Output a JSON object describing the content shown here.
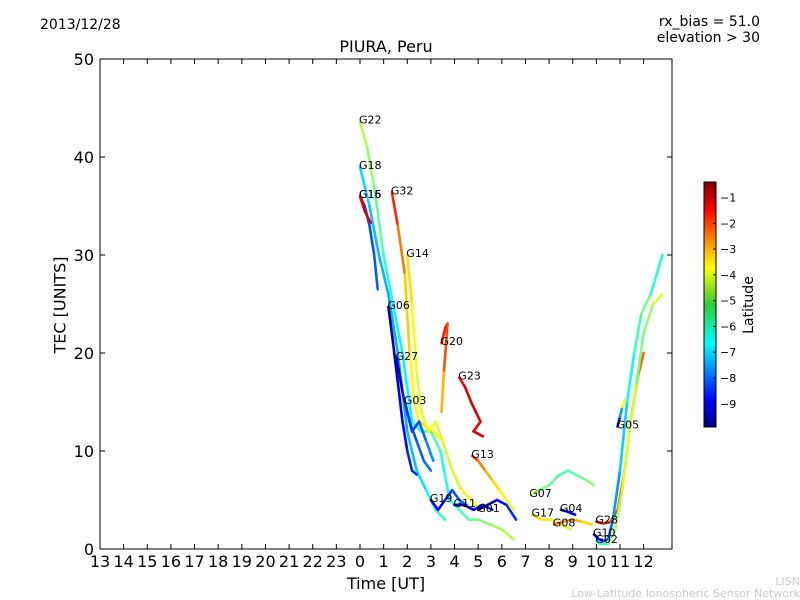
{
  "header": {
    "date": "2013/12/28",
    "rx_bias": "rx_bias = 51.0",
    "elevation": "elevation > 30"
  },
  "credit": {
    "line1": "LISN",
    "line2": "Low-Latitude Ionospheric Sensor Network"
  },
  "chart_data": {
    "type": "scatter",
    "title": "PIURA, Peru",
    "xlabel": "Time [UT]",
    "ylabel": "TEC [UNITS]",
    "x_tick_labels": [
      "13",
      "14",
      "15",
      "16",
      "17",
      "18",
      "19",
      "20",
      "21",
      "22",
      "23",
      "0",
      "1",
      "2",
      "3",
      "4",
      "5",
      "6",
      "7",
      "8",
      "9",
      "10",
      "11",
      "12"
    ],
    "ylim": [
      0,
      50
    ],
    "y_ticks": [
      0,
      10,
      20,
      30,
      40,
      50
    ],
    "colorbar": {
      "label": "Latitude",
      "range": [
        -9.9,
        -0.4
      ],
      "ticks": [
        -1,
        -2,
        -3,
        -4,
        -5,
        -6,
        -7,
        -8,
        -9
      ],
      "colormap": "jet"
    },
    "x_unit_note": "x values in hours after 13 UT (0 UT = 11)",
    "series": [
      {
        "name": "G22",
        "points": [
          [
            11.0,
            43.6,
            -4.5
          ],
          [
            11.3,
            41,
            -4.8
          ],
          [
            11.6,
            37,
            -5.2
          ],
          [
            12.0,
            30,
            -5.8
          ],
          [
            12.4,
            25,
            -6.2
          ],
          [
            12.8,
            20,
            -6.5
          ],
          [
            13.2,
            13,
            -6.3
          ],
          [
            13.6,
            12,
            -6.0
          ],
          [
            14.0,
            12,
            -5.5
          ],
          [
            14.4,
            10,
            -5.7
          ],
          [
            14.8,
            5,
            -6.4
          ],
          [
            15.2,
            4,
            -5.8
          ],
          [
            15.6,
            3,
            -5.5
          ],
          [
            16.0,
            3,
            -5.2
          ],
          [
            16.5,
            2.5,
            -5.0
          ],
          [
            17.0,
            2,
            -4.8
          ],
          [
            17.5,
            1,
            -4.5
          ]
        ]
      },
      {
        "name": "G18",
        "points": [
          [
            11.0,
            39,
            -6.5
          ],
          [
            11.4,
            35,
            -6.8
          ],
          [
            11.8,
            30,
            -7.0
          ],
          [
            12.2,
            26,
            -7.0
          ],
          [
            12.6,
            20,
            -7.2
          ],
          [
            13.0,
            12,
            -7.0
          ],
          [
            13.4,
            8,
            -6.8
          ],
          [
            13.8,
            6,
            -6.4
          ],
          [
            14.2,
            4,
            -6.0
          ],
          [
            14.6,
            3,
            -5.8
          ]
        ]
      },
      {
        "name": "G15",
        "points": [
          [
            11.0,
            36,
            -8.2
          ],
          [
            11.2,
            35,
            -8.1
          ],
          [
            11.4,
            33,
            -8.0
          ],
          [
            11.6,
            30,
            -7.9
          ],
          [
            11.75,
            26.5,
            -7.8
          ]
        ]
      },
      {
        "name": "G16",
        "points": [
          [
            11.0,
            36,
            -1.5
          ],
          [
            11.2,
            34.5,
            -1.3
          ],
          [
            11.45,
            33.3,
            -1.2
          ]
        ]
      },
      {
        "name": "G32",
        "points": [
          [
            12.35,
            36.4,
            -1.6
          ],
          [
            12.6,
            33,
            -2.2
          ],
          [
            12.9,
            28,
            -3.2
          ],
          [
            13.1,
            20,
            -3.8
          ],
          [
            13.3,
            15,
            -4.2
          ],
          [
            13.5,
            13,
            -3.8
          ],
          [
            13.8,
            12.5,
            -3.6
          ],
          [
            14.1,
            12,
            -4.0
          ],
          [
            14.5,
            11,
            -4.3
          ],
          [
            14.9,
            8,
            -4.5
          ],
          [
            15.3,
            6,
            -4.2
          ],
          [
            15.7,
            5,
            -4.0
          ],
          [
            16.1,
            4,
            -3.8
          ]
        ]
      },
      {
        "name": "G14",
        "points": [
          [
            13.0,
            30,
            -3.6
          ],
          [
            13.2,
            25,
            -3.8
          ],
          [
            13.4,
            18,
            -4.2
          ],
          [
            13.6,
            14,
            -4.3
          ],
          [
            13.9,
            12,
            -4.0
          ],
          [
            14.2,
            13,
            -4.1
          ],
          [
            14.5,
            11,
            -4.4
          ]
        ]
      },
      {
        "name": "G06",
        "points": [
          [
            12.2,
            24.7,
            -9.8
          ],
          [
            12.4,
            21,
            -9.6
          ],
          [
            12.6,
            17,
            -9.2
          ],
          [
            12.8,
            13,
            -8.8
          ],
          [
            13.0,
            10,
            -8.5
          ],
          [
            13.2,
            8,
            -8.3
          ],
          [
            13.4,
            7.6,
            -8.2
          ]
        ]
      },
      {
        "name": "G27",
        "points": [
          [
            12.55,
            19.5,
            -9.5
          ],
          [
            12.8,
            16,
            -8.8
          ],
          [
            13.1,
            13,
            -8.2
          ],
          [
            13.4,
            11,
            -7.9
          ],
          [
            13.7,
            9,
            -7.7
          ],
          [
            14.0,
            8,
            -7.5
          ]
        ]
      },
      {
        "name": "G03",
        "points": [
          [
            12.9,
            15,
            -8.4
          ],
          [
            13.2,
            12,
            -8.1
          ],
          [
            13.5,
            13,
            -7.9
          ],
          [
            13.8,
            11,
            -7.6
          ],
          [
            14.1,
            9,
            -7.2
          ]
        ]
      },
      {
        "name": "G20",
        "points": [
          [
            14.45,
            21,
            -2.0
          ],
          [
            14.6,
            22.5,
            -1.8
          ],
          [
            14.7,
            23,
            -1.6
          ],
          [
            14.55,
            18,
            -3.0
          ],
          [
            14.45,
            14,
            -3.5
          ]
        ]
      },
      {
        "name": "G23",
        "points": [
          [
            15.2,
            17.5,
            -1.8
          ],
          [
            15.45,
            16.5,
            -1.5
          ],
          [
            15.7,
            15,
            -1.2
          ],
          [
            15.9,
            14,
            -1.3
          ],
          [
            16.1,
            13,
            -1.5
          ],
          [
            15.8,
            12,
            -1.4
          ],
          [
            16.2,
            11.5,
            -1.2
          ]
        ]
      },
      {
        "name": "G13",
        "points": [
          [
            15.75,
            9.5,
            -1.5
          ],
          [
            16.0,
            9,
            -2.5
          ],
          [
            16.3,
            8,
            -3.0
          ],
          [
            16.6,
            7,
            -3.5
          ],
          [
            16.9,
            6,
            -3.8
          ],
          [
            17.2,
            5,
            -4.0
          ],
          [
            17.5,
            4,
            -4.2
          ]
        ]
      },
      {
        "name": "G19",
        "points": [
          [
            14.0,
            5,
            -9.5
          ],
          [
            14.3,
            4,
            -9.0
          ],
          [
            14.6,
            5,
            -8.5
          ],
          [
            14.9,
            6,
            -8.0
          ],
          [
            15.2,
            5,
            -7.8
          ],
          [
            15.5,
            4.5,
            -7.6
          ]
        ]
      },
      {
        "name": "G11",
        "points": [
          [
            15.0,
            4.5,
            -9.5
          ],
          [
            15.4,
            4.5,
            -9.2
          ],
          [
            15.8,
            4,
            -8.8
          ],
          [
            16.2,
            4.5,
            -8.5
          ],
          [
            16.6,
            4,
            -8.2
          ]
        ]
      },
      {
        "name": "G01",
        "points": [
          [
            16.0,
            4,
            -9.8
          ],
          [
            16.4,
            4.5,
            -9.5
          ],
          [
            16.8,
            5,
            -9.0
          ],
          [
            17.2,
            4.5,
            -8.5
          ],
          [
            17.6,
            3,
            -8.0
          ]
        ]
      },
      {
        "name": "G07",
        "points": [
          [
            18.2,
            5.5,
            -4.5
          ],
          [
            18.6,
            6,
            -5.0
          ],
          [
            19.0,
            6.5,
            -5.3
          ],
          [
            19.4,
            7.5,
            -5.6
          ],
          [
            19.8,
            8,
            -5.8
          ],
          [
            20.2,
            7.5,
            -5.5
          ],
          [
            20.6,
            7,
            -5.2
          ],
          [
            20.9,
            6.5,
            -5.0
          ]
        ]
      },
      {
        "name": "G17",
        "points": [
          [
            18.3,
            3.5,
            -3.5
          ],
          [
            18.7,
            3,
            -3.8
          ],
          [
            19.1,
            3,
            -4.0
          ],
          [
            19.5,
            2.5,
            -4.3
          ],
          [
            19.9,
            2,
            -4.5
          ]
        ]
      },
      {
        "name": "G08",
        "points": [
          [
            19.2,
            2.5,
            -2.5
          ],
          [
            19.6,
            2.8,
            -2.8
          ],
          [
            20.0,
            3,
            -3.0
          ],
          [
            20.4,
            2.8,
            -3.5
          ],
          [
            20.8,
            2.5,
            -3.8
          ]
        ]
      },
      {
        "name": "G04",
        "points": [
          [
            19.5,
            4,
            -9.2
          ],
          [
            19.8,
            3.8,
            -9.0
          ],
          [
            20.1,
            3.5,
            -8.8
          ]
        ]
      },
      {
        "name": "G28",
        "points": [
          [
            21.0,
            2.8,
            -1.5
          ],
          [
            21.3,
            2.6,
            -1.8
          ],
          [
            21.6,
            2.8,
            -2.0
          ],
          [
            21.9,
            4,
            -2.5
          ],
          [
            22.2,
            8,
            -3.0
          ],
          [
            22.5,
            14,
            -3.5
          ],
          [
            22.8,
            18,
            -3.0
          ],
          [
            23.0,
            20,
            -2.0
          ]
        ]
      },
      {
        "name": "G10",
        "points": [
          [
            20.9,
            1.5,
            -9.5
          ],
          [
            21.1,
            1,
            -9.0
          ],
          [
            21.3,
            0.8,
            -8.5
          ],
          [
            21.5,
            1,
            -8.0
          ],
          [
            21.7,
            3,
            -7.5
          ],
          [
            22.0,
            8,
            -7.0
          ],
          [
            22.3,
            15,
            -6.5
          ],
          [
            22.6,
            20,
            -6.0
          ],
          [
            22.9,
            24,
            -5.5
          ],
          [
            23.3,
            26,
            -5.0
          ],
          [
            23.8,
            30,
            -7.0
          ]
        ]
      },
      {
        "name": "G02",
        "points": [
          [
            21.0,
            0.8,
            -6.5
          ],
          [
            21.2,
            0.5,
            -6.0
          ],
          [
            21.5,
            0.5,
            -5.5
          ],
          [
            21.8,
            2,
            -5.0
          ],
          [
            22.1,
            6,
            -4.5
          ],
          [
            22.4,
            12,
            -4.0
          ],
          [
            22.7,
            17,
            -5.0
          ],
          [
            23.0,
            22,
            -5.5
          ],
          [
            23.4,
            25,
            -4.5
          ],
          [
            23.8,
            26,
            -4.0
          ]
        ]
      },
      {
        "name": "G05",
        "points": [
          [
            21.9,
            12.5,
            -9.5
          ],
          [
            22.0,
            13.5,
            -8.5
          ],
          [
            22.1,
            14.5,
            -6.0
          ],
          [
            22.2,
            15.2,
            -2.0
          ]
        ]
      }
    ]
  }
}
